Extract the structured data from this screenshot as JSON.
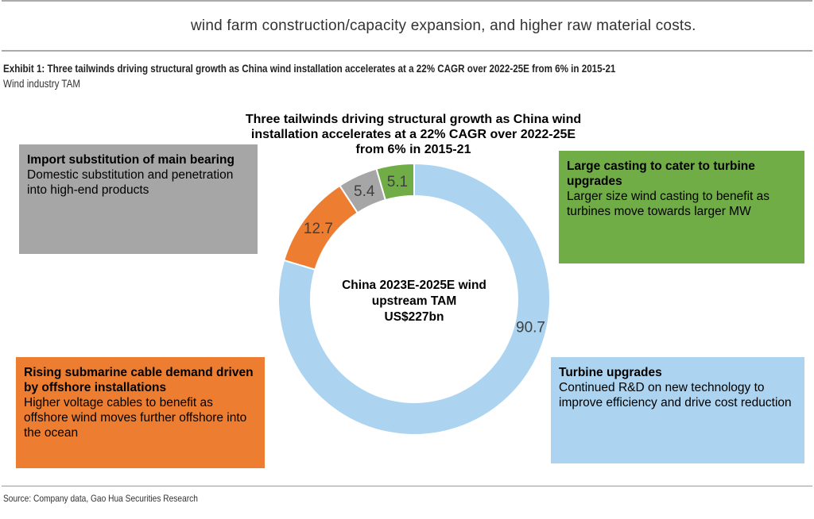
{
  "intro_text": "wind farm construction/capacity expansion, and higher raw material costs.",
  "exhibit_title": "Exhibit 1: Three tailwinds driving structural growth as China wind installation accelerates at a 22% CAGR over 2022-25E from 6% in 2015-21",
  "exhibit_subtitle": "Wind industry TAM",
  "source": "Source: Company data, Gao Hua Securities Research",
  "chart_data": {
    "type": "pie",
    "title": "Three tailwinds driving structural growth as China wind installation accelerates at a 22% CAGR over 2022-25E from 6% in 2015-21",
    "title_lines": [
      "Three tailwinds driving structural growth as China wind",
      "installation accelerates at a 22% CAGR over 2022-25E",
      "from 6% in 2015-21"
    ],
    "center_label": [
      "China 2023E-2025E wind",
      "upstream TAM",
      "US$227bn"
    ],
    "slices": [
      {
        "name": "Turbine upgrades",
        "value": 90.7,
        "label": "90.7",
        "color": "#acd3ef"
      },
      {
        "name": "Rising submarine cable demand",
        "value": 12.7,
        "label": "12.7",
        "color": "#ed7d31"
      },
      {
        "name": "Import substitution of main bearing",
        "value": 5.4,
        "label": "5.4",
        "color": "#a6a6a6"
      },
      {
        "name": "Large casting",
        "value": 5.1,
        "label": "5.1",
        "color": "#70ad47"
      }
    ],
    "annotations": {
      "gray": {
        "title": "Import substitution of main bearing",
        "body": "Domestic substitution and penetration into high-end products"
      },
      "green": {
        "title": "Large casting to cater to turbine upgrades",
        "body": "Larger size wind casting to benefit as turbines move towards larger MW"
      },
      "orange": {
        "title": "Rising submarine cable demand driven by offshore installations",
        "body": "Higher voltage cables to benefit as offshore wind moves further offshore into the ocean"
      },
      "blue": {
        "title": "Turbine upgrades",
        "body": "Continued R&D on new technology to improve efficiency and drive cost reduction"
      }
    }
  }
}
